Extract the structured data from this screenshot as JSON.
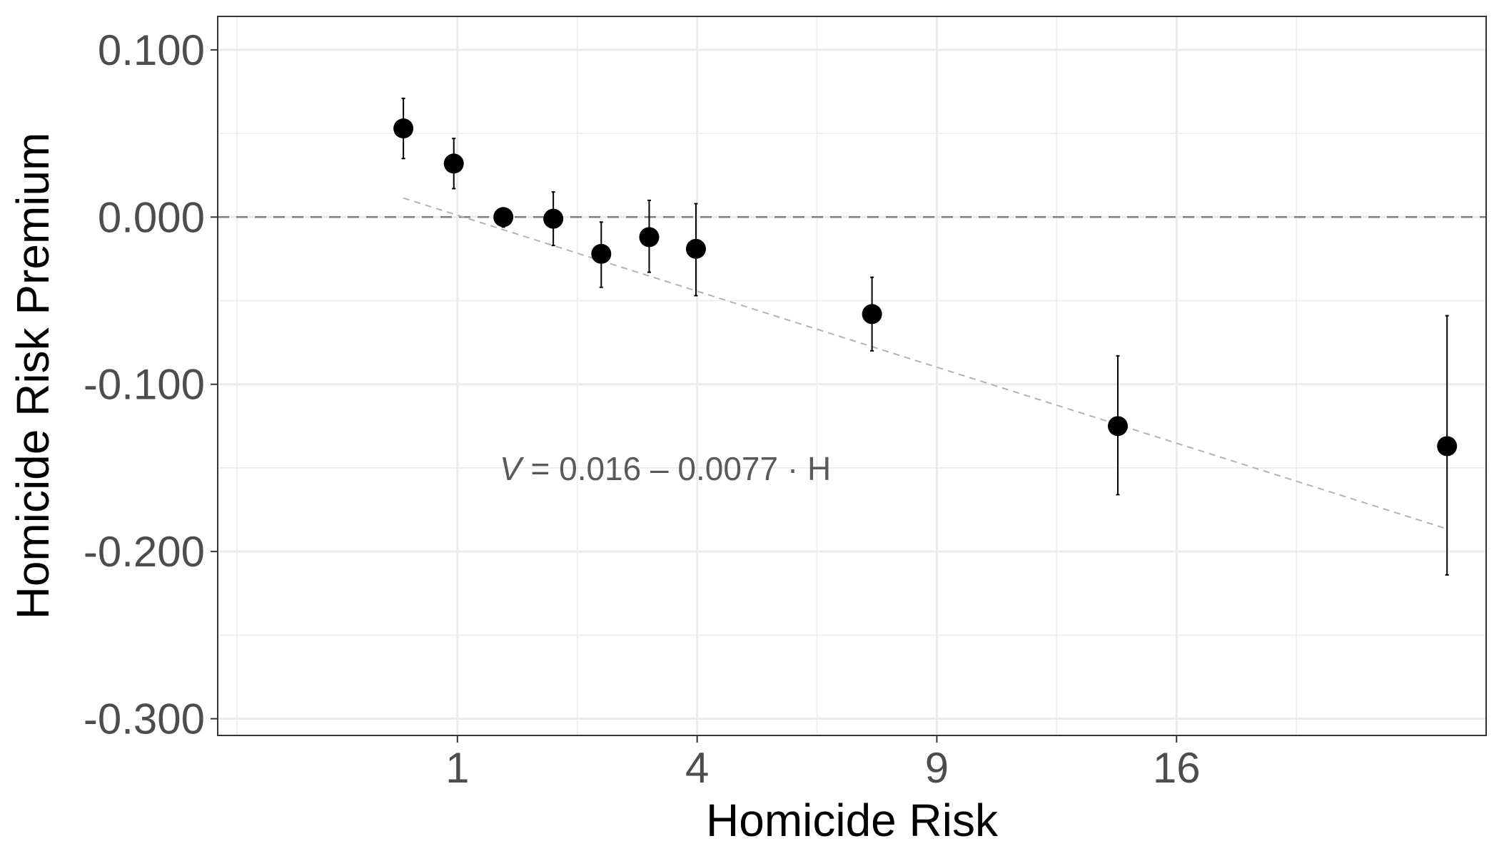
{
  "chart_data": {
    "type": "scatter",
    "xlabel": "Homicide Risk",
    "ylabel": "Homicide Risk Premium",
    "x_scale": "sqrt",
    "x_ticks": [
      1,
      4,
      9,
      16
    ],
    "x_tick_labels": [
      "1",
      "4",
      "9",
      "16"
    ],
    "xlim": [
      0.0,
      28.0
    ],
    "y_ticks": [
      0.1,
      0.0,
      -0.1,
      -0.2,
      -0.3
    ],
    "y_tick_labels": [
      "0.100",
      "0.000",
      "-0.100",
      "-0.200",
      "-0.300"
    ],
    "ylim": [
      -0.31,
      0.12
    ],
    "grid": true,
    "zero_reference_line": 0.0,
    "points": [
      {
        "x": 0.6,
        "y": 0.053,
        "ymin": 0.035,
        "ymax": 0.071
      },
      {
        "x": 0.97,
        "y": 0.032,
        "ymin": 0.017,
        "ymax": 0.047
      },
      {
        "x": 1.42,
        "y": 0.0,
        "ymin": -0.006,
        "ymax": 0.005
      },
      {
        "x": 1.96,
        "y": -0.001,
        "ymin": -0.017,
        "ymax": 0.015
      },
      {
        "x": 2.56,
        "y": -0.022,
        "ymin": -0.042,
        "ymax": -0.003
      },
      {
        "x": 3.24,
        "y": -0.012,
        "ymin": -0.033,
        "ymax": 0.01
      },
      {
        "x": 3.98,
        "y": -0.019,
        "ymin": -0.047,
        "ymax": 0.008
      },
      {
        "x": 7.45,
        "y": -0.058,
        "ymin": -0.08,
        "ymax": -0.036
      },
      {
        "x": 14.1,
        "y": -0.125,
        "ymin": -0.166,
        "ymax": -0.083
      },
      {
        "x": 26.3,
        "y": -0.137,
        "ymin": -0.214,
        "ymax": -0.059
      }
    ],
    "fit_line": {
      "intercept": 0.016,
      "slope": -0.0077,
      "x_from": 0.6,
      "x_to": 26.3,
      "style": "dashed"
    },
    "annotation": {
      "text": "V = 0.016 – 0.0077 · H"
    },
    "colors": {
      "points": "#000000",
      "fit": "#b3b3b3",
      "zero_line": "#808080",
      "grid": "#ebebeb",
      "panel_border": "#333333"
    }
  }
}
